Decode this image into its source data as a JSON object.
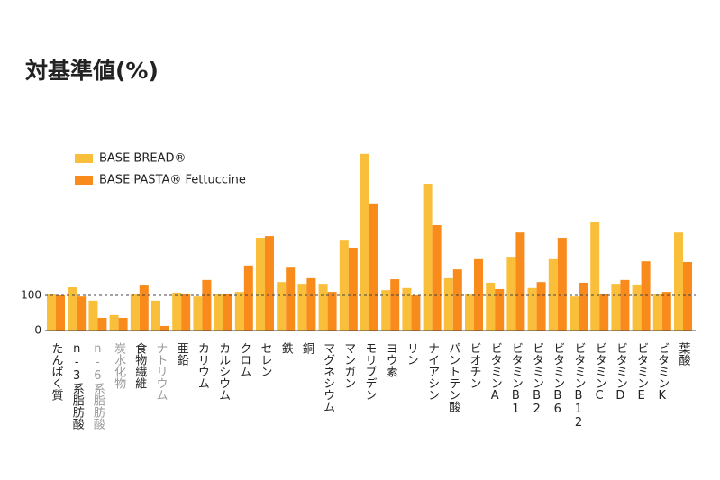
{
  "chart_data": {
    "type": "bar",
    "title": "対基準値(%)",
    "categories": [
      "たんぱく質",
      "n-3系脂肪酸",
      "n-6系脂肪酸",
      "炭水化物",
      "食物繊維",
      "ナトリウム",
      "亜鉛",
      "カリウム",
      "カルシウム",
      "クロム",
      "セレン",
      "鉄",
      "銅",
      "マグネシウム",
      "マンガン",
      "モリブデン",
      "ヨウ素",
      "リン",
      "ナイアシン",
      "パントテン酸",
      "ビオチン",
      "ビタミンA",
      "ビタミンB1",
      "ビタミンB2",
      "ビタミンB6",
      "ビタミンB12",
      "ビタミンC",
      "ビタミンD",
      "ビタミンE",
      "ビタミンK",
      "葉酸"
    ],
    "label_colors": [
      "#222",
      "#222",
      "#999",
      "#999",
      "#222",
      "#999",
      "#222",
      "#222",
      "#222",
      "#222",
      "#222",
      "#222",
      "#222",
      "#222",
      "#222",
      "#222",
      "#222",
      "#222",
      "#222",
      "#222",
      "#222",
      "#222",
      "#222",
      "#222",
      "#222",
      "#222",
      "#222",
      "#222",
      "#222",
      "#222",
      "#222"
    ],
    "series": [
      {
        "name": "BASE BREAD®",
        "color": "#f9bf3b",
        "values": [
          103,
          123,
          85,
          44,
          105,
          85,
          108,
          97,
          103,
          110,
          264,
          138,
          133,
          133,
          256,
          503,
          115,
          121,
          418,
          149,
          103,
          136,
          210,
          121,
          203,
          97,
          308,
          133,
          131,
          103,
          279
        ]
      },
      {
        "name": "BASE PASTA® Fettuccine",
        "color": "#f98a1c",
        "values": [
          100,
          97,
          36,
          36,
          128,
          13,
          105,
          144,
          103,
          185,
          269,
          179,
          149,
          110,
          236,
          362,
          146,
          100,
          300,
          174,
          203,
          118,
          279,
          138,
          264,
          136,
          105,
          144,
          197,
          110,
          195
        ]
      }
    ],
    "ylim": [
      0,
      500
    ],
    "yticks": [
      0,
      100
    ]
  }
}
